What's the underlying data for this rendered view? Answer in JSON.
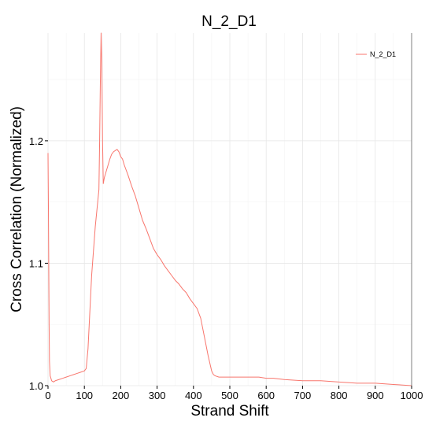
{
  "chart_data": {
    "type": "line",
    "title": "N_2_D1",
    "xlabel": "Strand Shift",
    "ylabel": "Cross Correlation (Normalized)",
    "xlim": [
      0,
      1000
    ],
    "ylim": [
      1.0,
      1.288
    ],
    "x_ticks": [
      0,
      100,
      200,
      300,
      400,
      500,
      600,
      700,
      800,
      900,
      1000
    ],
    "y_ticks": [
      1.0,
      1.1,
      1.2
    ],
    "y_tick_labels": [
      "1.0",
      "1.1",
      "1.2"
    ],
    "grid": true,
    "legend_position": "top-right",
    "line_color": "#f8766d",
    "series": [
      {
        "name": "N_2_D1",
        "color": "#f8766d",
        "points": [
          [
            0,
            1.19
          ],
          [
            1,
            1.15
          ],
          [
            2,
            1.1
          ],
          [
            3,
            1.05
          ],
          [
            4,
            1.02
          ],
          [
            6,
            1.008
          ],
          [
            10,
            1.004
          ],
          [
            15,
            1.003
          ],
          [
            20,
            1.004
          ],
          [
            30,
            1.005
          ],
          [
            40,
            1.006
          ],
          [
            50,
            1.007
          ],
          [
            60,
            1.008
          ],
          [
            70,
            1.009
          ],
          [
            80,
            1.01
          ],
          [
            90,
            1.011
          ],
          [
            100,
            1.012
          ],
          [
            105,
            1.014
          ],
          [
            110,
            1.03
          ],
          [
            115,
            1.06
          ],
          [
            120,
            1.09
          ],
          [
            125,
            1.11
          ],
          [
            130,
            1.13
          ],
          [
            135,
            1.145
          ],
          [
            140,
            1.16
          ],
          [
            142,
            1.2
          ],
          [
            144,
            1.25
          ],
          [
            146,
            1.288
          ],
          [
            148,
            1.26
          ],
          [
            150,
            1.2
          ],
          [
            152,
            1.165
          ],
          [
            155,
            1.17
          ],
          [
            160,
            1.175
          ],
          [
            165,
            1.18
          ],
          [
            170,
            1.185
          ],
          [
            175,
            1.189
          ],
          [
            180,
            1.191
          ],
          [
            185,
            1.192
          ],
          [
            190,
            1.193
          ],
          [
            195,
            1.191
          ],
          [
            200,
            1.187
          ],
          [
            205,
            1.185
          ],
          [
            210,
            1.18
          ],
          [
            220,
            1.172
          ],
          [
            230,
            1.163
          ],
          [
            240,
            1.155
          ],
          [
            250,
            1.145
          ],
          [
            260,
            1.135
          ],
          [
            270,
            1.128
          ],
          [
            280,
            1.12
          ],
          [
            290,
            1.112
          ],
          [
            300,
            1.107
          ],
          [
            310,
            1.103
          ],
          [
            320,
            1.098
          ],
          [
            330,
            1.094
          ],
          [
            340,
            1.09
          ],
          [
            350,
            1.086
          ],
          [
            360,
            1.083
          ],
          [
            370,
            1.079
          ],
          [
            380,
            1.076
          ],
          [
            390,
            1.071
          ],
          [
            400,
            1.067
          ],
          [
            410,
            1.063
          ],
          [
            420,
            1.055
          ],
          [
            430,
            1.04
          ],
          [
            440,
            1.025
          ],
          [
            450,
            1.012
          ],
          [
            455,
            1.009
          ],
          [
            460,
            1.008
          ],
          [
            470,
            1.007
          ],
          [
            480,
            1.007
          ],
          [
            500,
            1.007
          ],
          [
            520,
            1.007
          ],
          [
            550,
            1.007
          ],
          [
            580,
            1.007
          ],
          [
            600,
            1.006
          ],
          [
            620,
            1.006
          ],
          [
            650,
            1.005
          ],
          [
            700,
            1.004
          ],
          [
            750,
            1.004
          ],
          [
            800,
            1.003
          ],
          [
            850,
            1.002
          ],
          [
            900,
            1.002
          ],
          [
            950,
            1.001
          ],
          [
            1000,
            1.0
          ]
        ]
      }
    ]
  }
}
